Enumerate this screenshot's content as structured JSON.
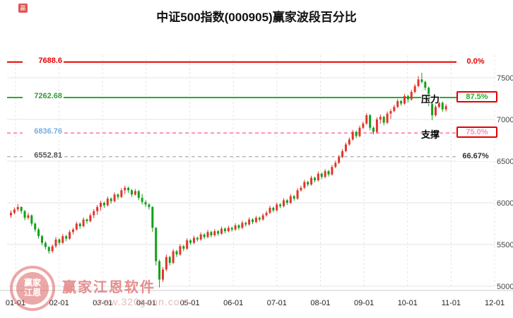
{
  "title": "中证500指数(000905)赢家波段百分比",
  "watermark": {
    "brand": "赢家江恩软件",
    "url": "www.320gann.com",
    "logo_line1": "赢家",
    "logo_line2": "江恩",
    "corner_char": "赢"
  },
  "labels": {
    "resistance": "压力",
    "support": "支撑"
  },
  "chart_data": {
    "type": "candlestick",
    "title": "中证500指数(000905)赢家波段百分比",
    "xlabel": "",
    "ylabel": "",
    "grid": true,
    "x_ticks": [
      "01-01",
      "02-01",
      "03-01",
      "04-01",
      "05-01",
      "06-01",
      "07-01",
      "08-01",
      "09-01",
      "10-01",
      "11-01",
      "12-01"
    ],
    "y_ticks": [
      7500,
      7000,
      6500,
      6000,
      5500,
      5000
    ],
    "ylim": [
      5000,
      7500
    ],
    "up_color": "#e2352c",
    "down_color": "#13a01a",
    "reference_lines": [
      {
        "price": 7688.6,
        "label": "7688.6",
        "percent": "0.0%",
        "label_color": "#e60000",
        "line_color": "#e60000",
        "percent_color": "#e60000",
        "style": "solid",
        "width": 2,
        "boxed": false,
        "tag": ""
      },
      {
        "price": 7262.68,
        "label": "7262.68",
        "percent": "87.5%",
        "label_color": "#2fa034",
        "line_color": "#1db32a",
        "percent_color": "#1db32a",
        "style": "solid",
        "width": 2,
        "boxed": true,
        "tag": "压力"
      },
      {
        "price": 6836.76,
        "label": "6836.76",
        "percent": "75.0%",
        "label_color": "#78aede",
        "line_color": "#ff8fb0",
        "percent_color": "#ff8fb0",
        "style": "dashed",
        "width": 2,
        "boxed": true,
        "tag": "支撑"
      },
      {
        "price": 6552.81,
        "label": "6552.81",
        "percent": "66.67%",
        "label_color": "#555555",
        "line_color": "#9a9a9a",
        "percent_color": "#333333",
        "style": "dashed",
        "width": 1,
        "boxed": false,
        "tag": ""
      }
    ],
    "candles": [
      [
        5850,
        5910,
        5820,
        5880
      ],
      [
        5880,
        5945,
        5860,
        5920
      ],
      [
        5920,
        5985,
        5895,
        5950
      ],
      [
        5950,
        5960,
        5870,
        5900
      ],
      [
        5900,
        5915,
        5790,
        5820
      ],
      [
        5820,
        5880,
        5800,
        5850
      ],
      [
        5850,
        5860,
        5720,
        5750
      ],
      [
        5750,
        5765,
        5650,
        5680
      ],
      [
        5680,
        5700,
        5570,
        5600
      ],
      [
        5600,
        5615,
        5490,
        5520
      ],
      [
        5520,
        5540,
        5440,
        5470
      ],
      [
        5470,
        5480,
        5390,
        5420
      ],
      [
        5420,
        5500,
        5400,
        5480
      ],
      [
        5480,
        5590,
        5460,
        5560
      ],
      [
        5560,
        5575,
        5490,
        5520
      ],
      [
        5520,
        5625,
        5505,
        5600
      ],
      [
        5600,
        5615,
        5540,
        5570
      ],
      [
        5570,
        5675,
        5555,
        5650
      ],
      [
        5650,
        5700,
        5620,
        5680
      ],
      [
        5680,
        5775,
        5665,
        5750
      ],
      [
        5750,
        5765,
        5690,
        5720
      ],
      [
        5720,
        5825,
        5705,
        5800
      ],
      [
        5800,
        5815,
        5750,
        5780
      ],
      [
        5780,
        5875,
        5765,
        5850
      ],
      [
        5850,
        5925,
        5815,
        5900
      ],
      [
        5900,
        5975,
        5855,
        5950
      ],
      [
        5950,
        6025,
        5905,
        6000
      ],
      [
        6000,
        6015,
        5940,
        5970
      ],
      [
        5970,
        6075,
        5955,
        6050
      ],
      [
        6050,
        6065,
        5990,
        6020
      ],
      [
        6020,
        6125,
        6005,
        6100
      ],
      [
        6100,
        6115,
        6040,
        6070
      ],
      [
        6070,
        6175,
        6055,
        6150
      ],
      [
        6150,
        6205,
        6105,
        6180
      ],
      [
        6180,
        6195,
        6120,
        6150
      ],
      [
        6150,
        6165,
        6070,
        6100
      ],
      [
        6100,
        6165,
        6085,
        6140
      ],
      [
        6140,
        6155,
        6030,
        6060
      ],
      [
        6060,
        6105,
        5980,
        6010
      ],
      [
        6010,
        6030,
        5950,
        5980
      ],
      [
        5980,
        5995,
        5920,
        5950
      ],
      [
        5950,
        5960,
        5650,
        5700
      ],
      [
        5700,
        5710,
        5250,
        5300
      ],
      [
        5300,
        5320,
        4985,
        5080
      ],
      [
        5080,
        5230,
        5050,
        5200
      ],
      [
        5200,
        5380,
        5180,
        5350
      ],
      [
        5350,
        5365,
        5250,
        5280
      ],
      [
        5280,
        5445,
        5265,
        5420
      ],
      [
        5420,
        5435,
        5350,
        5380
      ],
      [
        5380,
        5505,
        5365,
        5480
      ],
      [
        5480,
        5495,
        5420,
        5450
      ],
      [
        5450,
        5575,
        5435,
        5550
      ],
      [
        5550,
        5565,
        5495,
        5520
      ],
      [
        5520,
        5605,
        5505,
        5580
      ],
      [
        5580,
        5595,
        5535,
        5560
      ],
      [
        5560,
        5645,
        5545,
        5620
      ],
      [
        5620,
        5635,
        5565,
        5590
      ],
      [
        5590,
        5675,
        5575,
        5650
      ],
      [
        5650,
        5665,
        5585,
        5610
      ],
      [
        5610,
        5685,
        5595,
        5660
      ],
      [
        5660,
        5675,
        5605,
        5630
      ],
      [
        5630,
        5715,
        5615,
        5690
      ],
      [
        5690,
        5705,
        5635,
        5660
      ],
      [
        5660,
        5725,
        5645,
        5700
      ],
      [
        5700,
        5715,
        5655,
        5680
      ],
      [
        5680,
        5755,
        5665,
        5730
      ],
      [
        5730,
        5745,
        5675,
        5700
      ],
      [
        5700,
        5785,
        5685,
        5760
      ],
      [
        5760,
        5775,
        5715,
        5740
      ],
      [
        5740,
        5825,
        5725,
        5800
      ],
      [
        5800,
        5815,
        5745,
        5770
      ],
      [
        5770,
        5845,
        5755,
        5820
      ],
      [
        5820,
        5835,
        5775,
        5800
      ],
      [
        5800,
        5875,
        5785,
        5850
      ],
      [
        5850,
        5905,
        5835,
        5880
      ],
      [
        5880,
        5965,
        5865,
        5940
      ],
      [
        5940,
        5955,
        5885,
        5910
      ],
      [
        5910,
        6005,
        5895,
        5980
      ],
      [
        5980,
        5995,
        5935,
        5960
      ],
      [
        5960,
        6055,
        5945,
        6030
      ],
      [
        6030,
        6045,
        5975,
        6000
      ],
      [
        6000,
        6105,
        5985,
        6080
      ],
      [
        6080,
        6095,
        6025,
        6050
      ],
      [
        6050,
        6175,
        6035,
        6150
      ],
      [
        6150,
        6205,
        6135,
        6180
      ],
      [
        6180,
        6275,
        6165,
        6250
      ],
      [
        6250,
        6265,
        6195,
        6220
      ],
      [
        6220,
        6325,
        6205,
        6300
      ],
      [
        6300,
        6315,
        6245,
        6270
      ],
      [
        6270,
        6375,
        6255,
        6350
      ],
      [
        6350,
        6365,
        6285,
        6310
      ],
      [
        6310,
        6405,
        6295,
        6380
      ],
      [
        6380,
        6395,
        6315,
        6340
      ],
      [
        6340,
        6455,
        6325,
        6430
      ],
      [
        6430,
        6505,
        6415,
        6480
      ],
      [
        6480,
        6575,
        6465,
        6550
      ],
      [
        6550,
        6645,
        6535,
        6620
      ],
      [
        6620,
        6725,
        6605,
        6700
      ],
      [
        6700,
        6785,
        6685,
        6760
      ],
      [
        6760,
        6875,
        6745,
        6850
      ],
      [
        6850,
        6865,
        6775,
        6800
      ],
      [
        6800,
        6925,
        6785,
        6900
      ],
      [
        6900,
        6975,
        6885,
        6950
      ],
      [
        6950,
        7075,
        6935,
        7050
      ],
      [
        7050,
        7065,
        6870,
        6900
      ],
      [
        6900,
        6915,
        6820,
        6850
      ],
      [
        6850,
        7025,
        6835,
        7000
      ],
      [
        7000,
        7060,
        6950,
        7030
      ],
      [
        7030,
        7045,
        6930,
        6960
      ],
      [
        6960,
        7095,
        6945,
        7070
      ],
      [
        7070,
        7125,
        7005,
        7100
      ],
      [
        7100,
        7175,
        7085,
        7150
      ],
      [
        7150,
        7245,
        7135,
        7220
      ],
      [
        7220,
        7235,
        7165,
        7190
      ],
      [
        7190,
        7305,
        7175,
        7280
      ],
      [
        7280,
        7295,
        7205,
        7240
      ],
      [
        7240,
        7355,
        7225,
        7330
      ],
      [
        7330,
        7425,
        7315,
        7400
      ],
      [
        7400,
        7520,
        7385,
        7480
      ],
      [
        7480,
        7560,
        7430,
        7450
      ],
      [
        7450,
        7465,
        7350,
        7380
      ],
      [
        7380,
        7395,
        7160,
        7200
      ],
      [
        7200,
        7215,
        6990,
        7050
      ],
      [
        7050,
        7175,
        7035,
        7150
      ],
      [
        7150,
        7225,
        7135,
        7200
      ],
      [
        7200,
        7215,
        7090,
        7120
      ],
      [
        7120,
        7185,
        7095,
        7160
      ]
    ]
  }
}
